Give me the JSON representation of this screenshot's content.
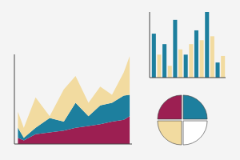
{
  "chart_data": [
    {
      "type": "area",
      "stacked": true,
      "tick_labels": false,
      "x": [
        3,
        8,
        18,
        30,
        42,
        52,
        63,
        73,
        83,
        93,
        98
      ],
      "xlim": [
        0,
        100
      ],
      "ylim": [
        0,
        100
      ],
      "series": [
        {
          "color": "#9c1f52",
          "values": [
            7,
            4,
            11,
            13,
            15,
            18,
            20,
            22,
            25,
            27,
            31
          ]
        },
        {
          "color": "#1d7f9e",
          "values": [
            11,
            3,
            7,
            16,
            10,
            28,
            11,
            21,
            21,
            27,
            24
          ]
        },
        {
          "color": "#f2dba0",
          "values": [
            18,
            11,
            34,
            2,
            36,
            30,
            15,
            21,
            9,
            26,
            43
          ]
        }
      ]
    },
    {
      "type": "bar",
      "tick_labels": false,
      "categories": [
        null,
        null,
        null,
        null,
        null,
        null,
        null,
        null,
        null,
        null,
        null,
        null,
        null,
        null
      ],
      "values": [
        67,
        35,
        51,
        18,
        88,
        43,
        35,
        51,
        72,
        57,
        100,
        63,
        23,
        33
      ],
      "colors": [
        "#1d7f9e",
        "#f2dba0",
        "#1d7f9e",
        "#f2dba0",
        "#1d7f9e",
        "#f2dba0",
        "#1d7f9e",
        "#f2dba0",
        "#1d7f9e",
        "#f2dba0",
        "#1d7f9e",
        "#f2dba0",
        "#1d7f9e",
        "#f2dba0"
      ],
      "ylim": [
        0,
        100
      ]
    },
    {
      "type": "pie",
      "categories": [
        null,
        null,
        null,
        null
      ],
      "values": [
        25,
        25,
        25,
        25
      ],
      "colors": [
        "#1d7f9e",
        "#ffffff",
        "#f2dba0",
        "#9c1f52"
      ]
    }
  ]
}
